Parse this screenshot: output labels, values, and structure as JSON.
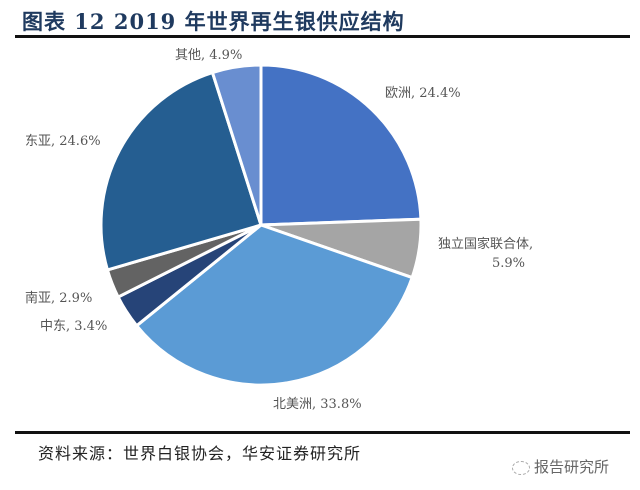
{
  "title": "图表 12 2019 年世界再生银供应结构",
  "source": "资料来源：世界白银协会，华安证券研究所",
  "watermark": "报告研究所",
  "chart_data": {
    "type": "pie",
    "title": "2019 年世界再生银供应结构",
    "start_angle": "12 o'clock, clockwise",
    "categories": [
      "欧洲",
      "独立国家联合体",
      "北美洲",
      "中东",
      "南亚",
      "东亚",
      "其他"
    ],
    "values": [
      24.4,
      5.9,
      33.8,
      3.4,
      2.9,
      24.6,
      4.9
    ],
    "colors": [
      "#4472c4",
      "#a5a5a5",
      "#5b9bd5",
      "#264478",
      "#636363",
      "#255e91",
      "#698ed0"
    ],
    "labels": [
      "欧洲, 24.4%",
      "独立国家联合体, 5.9%",
      "北美洲, 33.8%",
      "中东, 3.4%",
      "南亚, 2.9%",
      "东亚, 24.6%",
      "其他, 4.9%"
    ],
    "legend": "none (data labels)"
  },
  "labels": {
    "europe": "欧洲, 24.4%",
    "cis_line1": "独立国家联合体,",
    "cis_line2": "5.9%",
    "north_america": "北美洲, 33.8%",
    "middle_east": "中东, 3.4%",
    "south_asia": "南亚, 2.9%",
    "east_asia": "东亚, 24.6%",
    "other": "其他, 4.9%"
  }
}
